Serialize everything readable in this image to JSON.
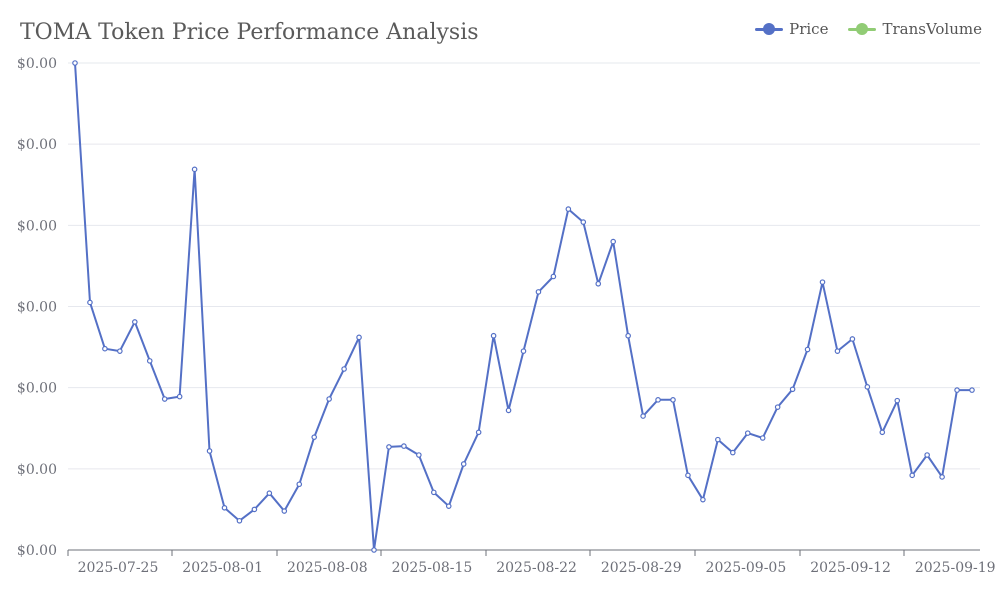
{
  "title": "TOMA Token Price Performance Analysis",
  "legend": [
    {
      "name": "Price",
      "color": "#5470c6"
    },
    {
      "name": "TransVolume",
      "color": "#91cc75"
    }
  ],
  "chart_data": {
    "type": "line",
    "title": "TOMA Token Price Performance Analysis",
    "xlabel": "",
    "ylabel": "",
    "y_tick_labels": [
      "$0.00",
      "$0.00",
      "$0.00",
      "$0.00",
      "$0.00",
      "$0.00",
      "$0.00"
    ],
    "x_tick_labels": [
      "2025-07-25",
      "2025-08-01",
      "2025-08-08",
      "2025-08-15",
      "2025-08-22",
      "2025-08-29",
      "2025-09-05",
      "2025-09-12",
      "2025-09-19"
    ],
    "x_start": "2025-07-25",
    "grid": true,
    "legend_position": "top-right",
    "series": [
      {
        "name": "Price",
        "color": "#5470c6",
        "values": [
          6.0,
          3.05,
          2.48,
          2.45,
          2.81,
          2.33,
          1.86,
          1.89,
          4.69,
          1.22,
          0.52,
          0.36,
          0.5,
          0.7,
          0.48,
          0.81,
          1.39,
          1.86,
          2.23,
          2.62,
          0.0,
          1.27,
          1.28,
          1.17,
          0.71,
          0.54,
          1.06,
          1.45,
          2.64,
          1.72,
          2.45,
          3.18,
          3.37,
          4.2,
          4.04,
          3.28,
          3.8,
          2.64,
          1.65,
          1.85,
          1.85,
          0.92,
          0.62,
          1.36,
          1.2,
          1.44,
          1.38,
          1.76,
          1.98,
          2.47,
          3.3,
          2.45,
          2.6,
          2.01,
          1.45,
          1.84,
          0.92,
          1.17,
          0.9,
          1.97,
          1.97
        ]
      },
      {
        "name": "TransVolume",
        "color": "#91cc75",
        "values": []
      }
    ],
    "ylim": [
      0,
      6
    ]
  }
}
